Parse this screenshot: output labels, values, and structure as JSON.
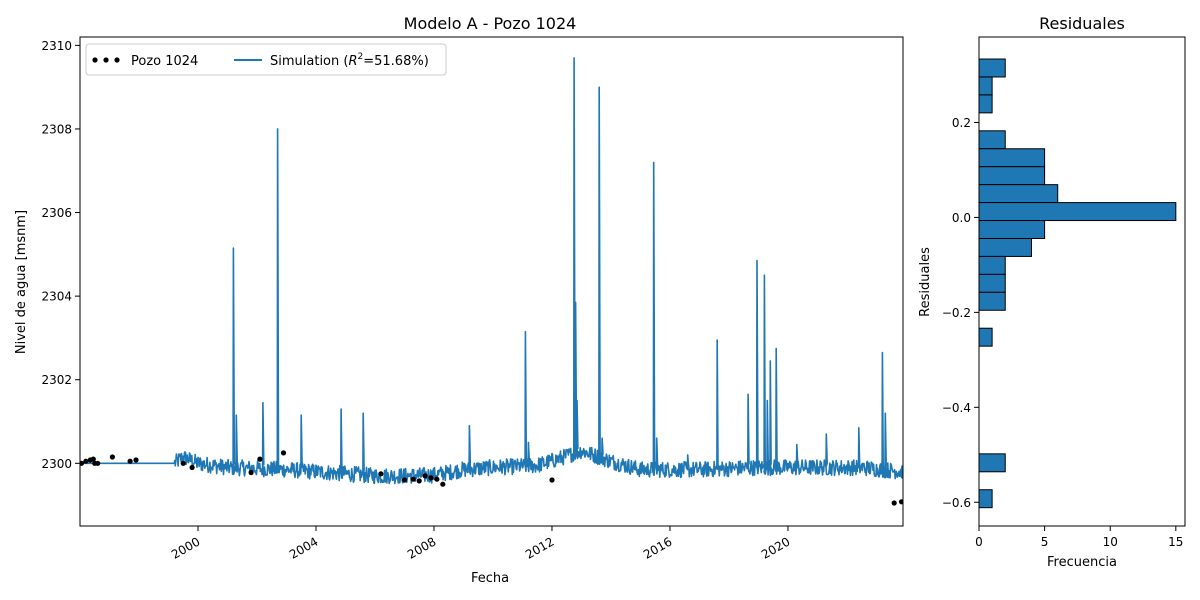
{
  "colors": {
    "series": "#1f77b4",
    "obs": "#000000",
    "edge": "#000000"
  },
  "chart_data": [
    {
      "type": "line",
      "title": "Modelo A - Pozo 1024",
      "xlabel": "Fecha",
      "ylabel": "Nivel de agua [msnm]",
      "xlim": [
        1996.0,
        2023.9
      ],
      "ylim": [
        2298.5,
        2310.2
      ],
      "x_ticks": [
        2000,
        2004,
        2008,
        2012,
        2016,
        2020
      ],
      "x_tick_labels": [
        "2000",
        "2004",
        "2008",
        "2012",
        "2016",
        "2020"
      ],
      "y_ticks": [
        2300,
        2302,
        2304,
        2306,
        2308,
        2310
      ],
      "y_tick_labels": [
        "2300",
        "2302",
        "2304",
        "2306",
        "2308",
        "2310"
      ],
      "legend": {
        "position": "top-left",
        "obs_label": "Pozo 1024",
        "sim_label_prefix": "Simulation (",
        "sim_label_r": "R",
        "sim_label_sup": "2",
        "sim_label_suffix": "=51.68%)"
      },
      "series": [
        {
          "name": "Pozo 1024",
          "style": "points",
          "points": [
            [
              1996.05,
              2300.0
            ],
            [
              1996.2,
              2300.05
            ],
            [
              1996.35,
              2300.08
            ],
            [
              1996.45,
              2300.1
            ],
            [
              1996.5,
              2300.0
            ],
            [
              1996.6,
              2300.0
            ],
            [
              1997.1,
              2300.15
            ],
            [
              1997.7,
              2300.05
            ],
            [
              1997.9,
              2300.08
            ],
            [
              1999.5,
              2300.0
            ],
            [
              1999.8,
              2299.9
            ],
            [
              2001.8,
              2299.78
            ],
            [
              2002.1,
              2300.1
            ],
            [
              2002.9,
              2300.25
            ],
            [
              2006.2,
              2299.75
            ],
            [
              2007.0,
              2299.6
            ],
            [
              2007.3,
              2299.62
            ],
            [
              2007.5,
              2299.58
            ],
            [
              2007.7,
              2299.7
            ],
            [
              2007.9,
              2299.65
            ],
            [
              2008.1,
              2299.62
            ],
            [
              2008.3,
              2299.5
            ],
            [
              2012.0,
              2299.6
            ],
            [
              2023.6,
              2299.05
            ],
            [
              2023.85,
              2299.08
            ]
          ]
        },
        {
          "name": "Simulation",
          "style": "line",
          "base": [
            [
              1996.0,
              2300.0
            ],
            [
              1999.2,
              2300.0
            ],
            [
              1999.5,
              2300.15
            ],
            [
              2000.0,
              2300.0
            ],
            [
              2001.0,
              2299.9
            ],
            [
              2003.0,
              2299.85
            ],
            [
              2004.0,
              2299.8
            ],
            [
              2005.0,
              2299.75
            ],
            [
              2006.0,
              2299.7
            ],
            [
              2007.0,
              2299.7
            ],
            [
              2008.0,
              2299.72
            ],
            [
              2009.0,
              2299.85
            ],
            [
              2010.0,
              2299.9
            ],
            [
              2011.5,
              2299.95
            ],
            [
              2012.2,
              2300.1
            ],
            [
              2013.0,
              2300.3
            ],
            [
              2014.0,
              2300.05
            ],
            [
              2015.0,
              2299.85
            ],
            [
              2017.0,
              2299.85
            ],
            [
              2019.0,
              2299.9
            ],
            [
              2021.0,
              2299.9
            ],
            [
              2022.5,
              2299.9
            ],
            [
              2023.9,
              2299.8
            ]
          ],
          "spikes": [
            [
              2001.2,
              2305.15
            ],
            [
              2001.3,
              2301.15
            ],
            [
              2002.2,
              2301.45
            ],
            [
              2002.7,
              2308.0
            ],
            [
              2003.5,
              2301.15
            ],
            [
              2004.85,
              2301.3
            ],
            [
              2005.6,
              2301.2
            ],
            [
              2009.2,
              2300.9
            ],
            [
              2011.1,
              2303.15
            ],
            [
              2011.2,
              2300.5
            ],
            [
              2012.75,
              2309.7
            ],
            [
              2012.8,
              2303.85
            ],
            [
              2012.85,
              2301.5
            ],
            [
              2013.6,
              2309.0
            ],
            [
              2013.7,
              2300.6
            ],
            [
              2015.45,
              2307.2
            ],
            [
              2015.55,
              2300.6
            ],
            [
              2016.6,
              2300.2
            ],
            [
              2017.6,
              2302.95
            ],
            [
              2018.65,
              2301.65
            ],
            [
              2018.95,
              2304.85
            ],
            [
              2019.2,
              2304.5
            ],
            [
              2019.3,
              2301.5
            ],
            [
              2019.4,
              2302.45
            ],
            [
              2019.6,
              2302.75
            ],
            [
              2020.3,
              2300.45
            ],
            [
              2021.3,
              2300.7
            ],
            [
              2022.4,
              2300.85
            ],
            [
              2023.2,
              2302.65
            ],
            [
              2023.3,
              2301.2
            ]
          ]
        }
      ]
    },
    {
      "type": "bar",
      "orientation": "horizontal",
      "title": "Residuales",
      "xlabel": "Frecuencia",
      "ylabel": "Residuales",
      "xlim": [
        0,
        15.7
      ],
      "ylim": [
        -0.65,
        0.38
      ],
      "x_ticks": [
        0,
        5,
        10,
        15
      ],
      "x_tick_labels": [
        "0",
        "5",
        "10",
        "15"
      ],
      "y_ticks": [
        0.2,
        0.0,
        -0.2,
        -0.4,
        -0.6
      ],
      "y_tick_labels": [
        "0.2",
        "0.0",
        "−0.2",
        "−0.4",
        "−0.6"
      ],
      "bin_width": 0.0378,
      "bins": [
        {
          "start": 0.2958,
          "count": 2
        },
        {
          "start": 0.258,
          "count": 1
        },
        {
          "start": 0.2202,
          "count": 1
        },
        {
          "start": 0.1446,
          "count": 2
        },
        {
          "start": 0.1068,
          "count": 5
        },
        {
          "start": 0.069,
          "count": 5
        },
        {
          "start": 0.0312,
          "count": 6
        },
        {
          "start": -0.0066,
          "count": 15
        },
        {
          "start": -0.0444,
          "count": 5
        },
        {
          "start": -0.0822,
          "count": 4
        },
        {
          "start": -0.12,
          "count": 2
        },
        {
          "start": -0.1578,
          "count": 2
        },
        {
          "start": -0.1956,
          "count": 2
        },
        {
          "start": -0.2712,
          "count": 1
        },
        {
          "start": -0.5358,
          "count": 2
        },
        {
          "start": -0.6114,
          "count": 1
        }
      ]
    }
  ]
}
